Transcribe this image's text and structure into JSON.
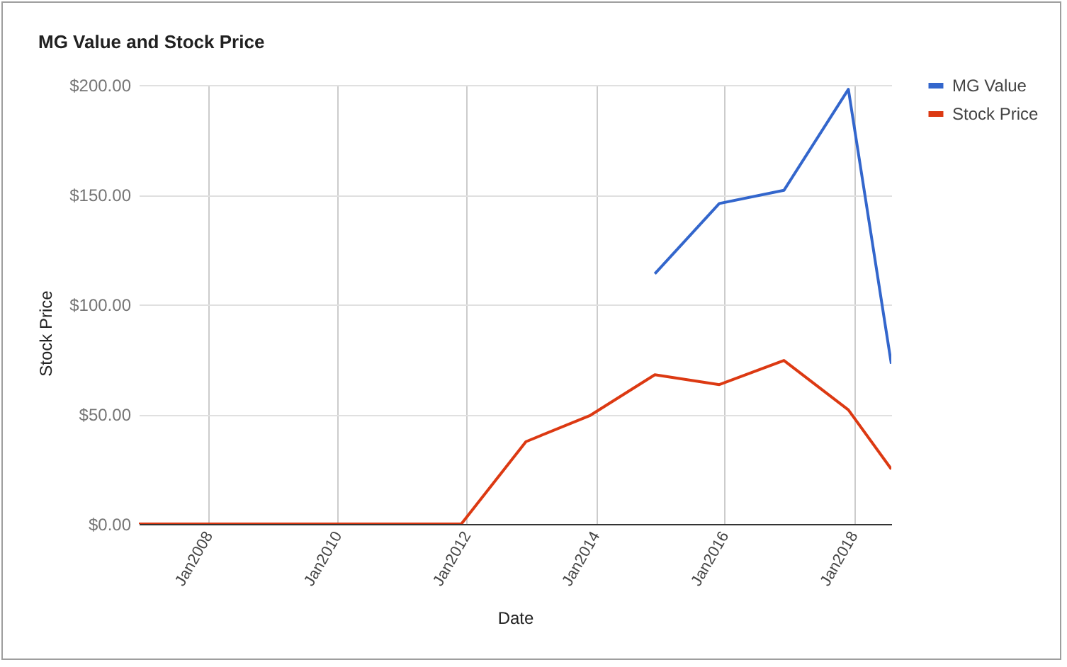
{
  "chart_data": {
    "type": "line",
    "title": "MG Value and Stock Price",
    "xlabel": "Date",
    "ylabel": "Stock Price",
    "series": [
      {
        "name": "MG Value",
        "color": "#3366cc",
        "x": [
          "2014-12",
          "2015-12",
          "2016-12",
          "2017-12",
          "2018-08"
        ],
        "values": [
          114,
          146,
          152,
          198,
          73
        ]
      },
      {
        "name": "Stock Price",
        "color": "#dc3912",
        "x": [
          "2006-12",
          "2007-12",
          "2008-12",
          "2009-12",
          "2010-12",
          "2011-12",
          "2012-12",
          "2013-12",
          "2014-12",
          "2015-12",
          "2016-12",
          "2017-12",
          "2018-08"
        ],
        "values": [
          0,
          0,
          0,
          0,
          0,
          0,
          37.5,
          49.5,
          68,
          63.5,
          74.5,
          52,
          25
        ]
      }
    ],
    "xlim": [
      "2006-12",
      "2018-08"
    ],
    "xticks": [
      {
        "value": "2008-01",
        "label": "Jan2008"
      },
      {
        "value": "2010-01",
        "label": "Jan2010"
      },
      {
        "value": "2012-01",
        "label": "Jan2012"
      },
      {
        "value": "2014-01",
        "label": "Jan2014"
      },
      {
        "value": "2016-01",
        "label": "Jan2016"
      },
      {
        "value": "2018-01",
        "label": "Jan2018"
      }
    ],
    "ylim": [
      0,
      200
    ],
    "yticks": [
      {
        "value": 0,
        "label": "$0.00"
      },
      {
        "value": 50,
        "label": "$50.00"
      },
      {
        "value": 100,
        "label": "$100.00"
      },
      {
        "value": 150,
        "label": "$150.00"
      },
      {
        "value": 200,
        "label": "$200.00"
      }
    ],
    "grid": true,
    "legend": "top right"
  }
}
